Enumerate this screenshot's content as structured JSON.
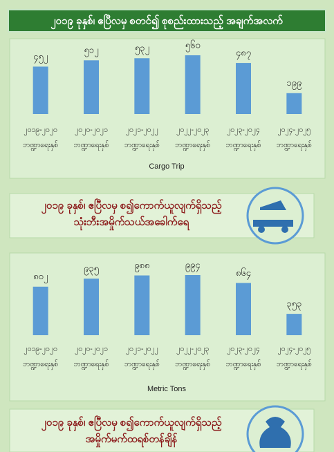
{
  "title": "၂၀၁၉ ခုနှစ်၊ ဧပြီလမှ စတင်၍ စုစည်းထားသည့် အချက်အလက်",
  "chart_data": [
    {
      "type": "bar",
      "xlabel": "Cargo Trip",
      "color": "#5b9bd5",
      "categories": [
        "၂၀၁၉-၂၀၂၀ ဘဏ္ဍာရေးနှစ်",
        "၂၀၂၀-၂၀၂၁ ဘဏ္ဍာရေးနှစ်",
        "၂၀၂၁-၂၀၂၂ ဘဏ္ဍာရေးနှစ်",
        "၂၀၂၂-၂၀၂၃ ဘဏ္ဍာရေးနှစ်",
        "၂၀၂၃-၂၀၂၄ ဘဏ္ဍာရေးနှစ်",
        "၂၀၂၄-၂၀၂၅ ဘဏ္ဍာရေးနှစ်"
      ],
      "values": [
        452,
        512,
        532,
        560,
        487,
        199
      ],
      "value_labels": [
        "၄၅၂",
        "၅၁၂",
        "၅၃၂",
        "၅၆၀",
        "၄၈၇",
        "၁၉၉"
      ]
    },
    {
      "type": "bar",
      "xlabel": "Metric Tons",
      "color": "#5b9bd5",
      "categories": [
        "၂၀၁၉-၂၀၂၀ ဘဏ္ဍာရေးနှစ်",
        "၂၀၂၀-၂၀၂၁ ဘဏ္ဍာရေးနှစ်",
        "၂၀၂၁-၂၀၂၂ ဘဏ္ဍာရေးနှစ်",
        "၂၀၂၂-၂၀၂၃ ဘဏ္ဍာရေးနှစ်",
        "၂၀၂၃-၂၀၂၄ ဘဏ္ဍာရေးနှစ်",
        "၂၀၂၄-၂၀၂၅ ဘဏ္ဍာရေးနှစ်"
      ],
      "values": [
        802,
        935,
        988,
        994,
        864,
        353
      ],
      "value_labels": [
        "၈၀၂",
        "၉၃၅",
        "၉၈၈",
        "၉၉၄",
        "၈၆၄",
        "၃၅၃"
      ]
    }
  ],
  "banners": [
    [
      "၂၀၁၉ ခုနှစ်၊ ဧပြီလမှ စ၍ကောက်ယူလျက်ရှိသည့်",
      "သုံးဘီးအမှိုက်သယ်အခေါက်ရေ"
    ],
    [
      "၂၀၁၉ ခုနှစ်၊ ဧပြီလမှ စ၍ကောက်ယူလျက်ရှိသည့်",
      "အမှိုက်မက်ထရစ်တန်ချိန်"
    ]
  ]
}
